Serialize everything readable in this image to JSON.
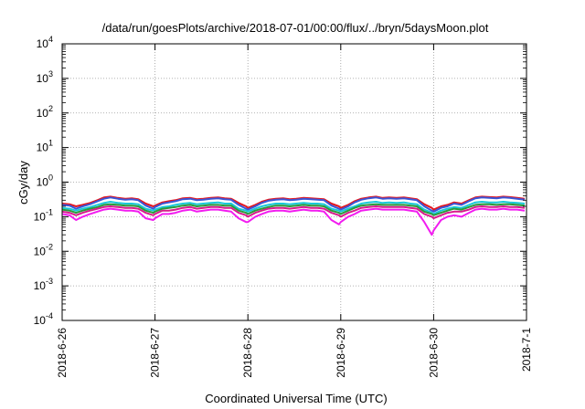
{
  "chart_data": {
    "type": "line",
    "title": "/data/run/goesPlots/archive/2018-07-01/00:00/flux/../bryn/5daysMoon.plot",
    "xlabel": "Coordinated Universal Time (UTC)",
    "ylabel": "cGy/day",
    "yscale": "log",
    "ylim": [
      0.0001,
      10000
    ],
    "xlim": [
      "2018-06-26",
      "2018-07-01"
    ],
    "grid": true,
    "x_tick_labels": [
      "2018-6-26",
      "2018-6-27",
      "2018-6-28",
      "2018-6-29",
      "2018-6-30",
      "2018-7-1"
    ],
    "y_tick_labels": [
      {
        "base": "10",
        "exp": "-4"
      },
      {
        "base": "10",
        "exp": "-3"
      },
      {
        "base": "10",
        "exp": "-2"
      },
      {
        "base": "10",
        "exp": "-1"
      },
      {
        "base": "10",
        "exp": "0"
      },
      {
        "base": "10",
        "exp": "1"
      },
      {
        "base": "10",
        "exp": "2"
      },
      {
        "base": "10",
        "exp": "3"
      },
      {
        "base": "10",
        "exp": "4"
      }
    ],
    "x_days": [
      0.0,
      0.08,
      0.15,
      0.22,
      0.3,
      0.38,
      0.45,
      0.52,
      0.6,
      0.68,
      0.75,
      0.82,
      0.9,
      0.98,
      1.0,
      1.08,
      1.15,
      1.22,
      1.3,
      1.38,
      1.45,
      1.52,
      1.6,
      1.68,
      1.75,
      1.82,
      1.9,
      1.98,
      2.0,
      2.08,
      2.15,
      2.22,
      2.3,
      2.38,
      2.45,
      2.52,
      2.6,
      2.68,
      2.75,
      2.82,
      2.9,
      2.98,
      3.0,
      3.08,
      3.15,
      3.22,
      3.3,
      3.38,
      3.45,
      3.52,
      3.6,
      3.68,
      3.75,
      3.82,
      3.9,
      3.98,
      4.0,
      4.08,
      4.15,
      4.22,
      4.3,
      4.38,
      4.45,
      4.52,
      4.6,
      4.68,
      4.75,
      4.82,
      4.9,
      4.98
    ],
    "series": [
      {
        "color": "#e3161f",
        "values": [
          0.24,
          0.23,
          0.2,
          0.22,
          0.25,
          0.3,
          0.36,
          0.38,
          0.35,
          0.33,
          0.34,
          0.32,
          0.24,
          0.2,
          0.21,
          0.26,
          0.28,
          0.3,
          0.34,
          0.35,
          0.32,
          0.33,
          0.35,
          0.36,
          0.34,
          0.33,
          0.25,
          0.2,
          0.18,
          0.22,
          0.27,
          0.31,
          0.33,
          0.34,
          0.32,
          0.33,
          0.35,
          0.34,
          0.33,
          0.32,
          0.24,
          0.2,
          0.18,
          0.22,
          0.28,
          0.33,
          0.36,
          0.38,
          0.35,
          0.36,
          0.35,
          0.36,
          0.34,
          0.32,
          0.23,
          0.18,
          0.16,
          0.2,
          0.22,
          0.26,
          0.24,
          0.3,
          0.36,
          0.38,
          0.37,
          0.36,
          0.38,
          0.37,
          0.35,
          0.33
        ]
      },
      {
        "color": "#3a56d8",
        "values": [
          0.22,
          0.21,
          0.17,
          0.2,
          0.23,
          0.28,
          0.33,
          0.36,
          0.33,
          0.31,
          0.32,
          0.3,
          0.21,
          0.17,
          0.19,
          0.24,
          0.26,
          0.28,
          0.32,
          0.33,
          0.3,
          0.31,
          0.33,
          0.34,
          0.32,
          0.31,
          0.22,
          0.17,
          0.16,
          0.2,
          0.25,
          0.29,
          0.31,
          0.32,
          0.3,
          0.31,
          0.33,
          0.32,
          0.31,
          0.3,
          0.21,
          0.17,
          0.16,
          0.2,
          0.26,
          0.31,
          0.34,
          0.36,
          0.33,
          0.34,
          0.33,
          0.34,
          0.32,
          0.3,
          0.2,
          0.15,
          0.14,
          0.18,
          0.2,
          0.24,
          0.22,
          0.28,
          0.34,
          0.36,
          0.35,
          0.34,
          0.36,
          0.35,
          0.33,
          0.31
        ]
      },
      {
        "color": "#18c8d8",
        "values": [
          0.18,
          0.17,
          0.15,
          0.17,
          0.19,
          0.22,
          0.25,
          0.27,
          0.25,
          0.24,
          0.24,
          0.23,
          0.17,
          0.15,
          0.16,
          0.19,
          0.2,
          0.22,
          0.24,
          0.25,
          0.23,
          0.24,
          0.25,
          0.26,
          0.24,
          0.24,
          0.17,
          0.15,
          0.14,
          0.17,
          0.2,
          0.22,
          0.24,
          0.24,
          0.23,
          0.24,
          0.25,
          0.24,
          0.24,
          0.23,
          0.17,
          0.15,
          0.14,
          0.17,
          0.2,
          0.24,
          0.26,
          0.27,
          0.25,
          0.26,
          0.25,
          0.26,
          0.24,
          0.23,
          0.16,
          0.13,
          0.12,
          0.15,
          0.17,
          0.19,
          0.18,
          0.22,
          0.26,
          0.27,
          0.26,
          0.26,
          0.27,
          0.26,
          0.25,
          0.24
        ]
      },
      {
        "color": "#2a9a3a",
        "values": [
          0.16,
          0.15,
          0.13,
          0.15,
          0.17,
          0.19,
          0.22,
          0.23,
          0.22,
          0.21,
          0.21,
          0.2,
          0.15,
          0.13,
          0.14,
          0.17,
          0.18,
          0.19,
          0.21,
          0.22,
          0.2,
          0.21,
          0.22,
          0.22,
          0.21,
          0.21,
          0.15,
          0.13,
          0.12,
          0.15,
          0.17,
          0.19,
          0.21,
          0.21,
          0.2,
          0.21,
          0.22,
          0.21,
          0.21,
          0.2,
          0.15,
          0.13,
          0.12,
          0.15,
          0.18,
          0.21,
          0.22,
          0.23,
          0.22,
          0.22,
          0.22,
          0.22,
          0.21,
          0.2,
          0.14,
          0.12,
          0.11,
          0.13,
          0.15,
          0.17,
          0.16,
          0.19,
          0.22,
          0.23,
          0.23,
          0.22,
          0.23,
          0.23,
          0.22,
          0.21
        ]
      },
      {
        "color": "#d81b8c",
        "values": [
          0.14,
          0.13,
          0.11,
          0.13,
          0.15,
          0.17,
          0.19,
          0.2,
          0.19,
          0.18,
          0.18,
          0.17,
          0.13,
          0.11,
          0.12,
          0.15,
          0.15,
          0.16,
          0.18,
          0.19,
          0.17,
          0.18,
          0.19,
          0.19,
          0.18,
          0.18,
          0.13,
          0.11,
          0.1,
          0.13,
          0.15,
          0.17,
          0.18,
          0.18,
          0.17,
          0.18,
          0.19,
          0.18,
          0.18,
          0.17,
          0.13,
          0.11,
          0.1,
          0.13,
          0.15,
          0.18,
          0.19,
          0.2,
          0.19,
          0.19,
          0.19,
          0.19,
          0.18,
          0.17,
          0.12,
          0.1,
          0.09,
          0.11,
          0.13,
          0.14,
          0.14,
          0.16,
          0.19,
          0.2,
          0.19,
          0.19,
          0.2,
          0.19,
          0.19,
          0.18
        ]
      },
      {
        "color": "#f21cf0",
        "values": [
          0.12,
          0.11,
          0.08,
          0.1,
          0.12,
          0.14,
          0.16,
          0.17,
          0.16,
          0.15,
          0.15,
          0.14,
          0.09,
          0.08,
          0.09,
          0.12,
          0.12,
          0.13,
          0.15,
          0.16,
          0.14,
          0.15,
          0.16,
          0.16,
          0.15,
          0.14,
          0.09,
          0.07,
          0.07,
          0.1,
          0.12,
          0.14,
          0.15,
          0.15,
          0.14,
          0.15,
          0.16,
          0.15,
          0.15,
          0.14,
          0.08,
          0.06,
          0.07,
          0.1,
          0.12,
          0.15,
          0.16,
          0.17,
          0.16,
          0.16,
          0.16,
          0.16,
          0.15,
          0.14,
          0.07,
          0.03,
          0.04,
          0.08,
          0.1,
          0.11,
          0.1,
          0.13,
          0.16,
          0.17,
          0.16,
          0.16,
          0.17,
          0.16,
          0.16,
          0.15
        ]
      }
    ]
  }
}
